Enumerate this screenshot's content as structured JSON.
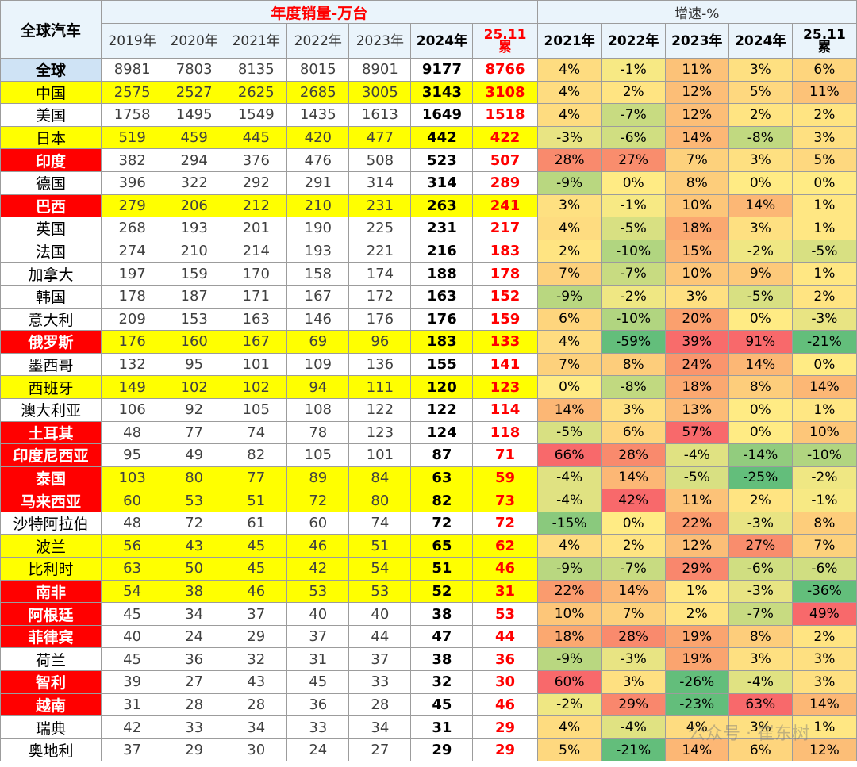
{
  "header": {
    "corner": "全球汽车",
    "sales_title": "年度销量-万台",
    "growth_title": "增速-%",
    "sales_years": [
      "2019年",
      "2020年",
      "2021年",
      "2022年",
      "2023年",
      "2024年",
      "25.11\n累"
    ],
    "growth_years": [
      "2021年",
      "2022年",
      "2023年",
      "2024年",
      "25.11\n累"
    ]
  },
  "watermark": "公众号 · 崔东树",
  "rows": [
    {
      "name": "全球",
      "hl": "blue",
      "sales": [
        "8981",
        "7803",
        "8135",
        "8015",
        "8901",
        "9177",
        "8766"
      ],
      "growth": [
        "4%",
        "-1%",
        "11%",
        "3%",
        "6%"
      ]
    },
    {
      "name": "中国",
      "hl": "yellow",
      "sales": [
        "2575",
        "2527",
        "2625",
        "2685",
        "3005",
        "3143",
        "3108"
      ],
      "growth": [
        "4%",
        "2%",
        "12%",
        "5%",
        "11%"
      ]
    },
    {
      "name": "美国",
      "hl": "",
      "sales": [
        "1758",
        "1495",
        "1549",
        "1435",
        "1613",
        "1649",
        "1518"
      ],
      "growth": [
        "4%",
        "-7%",
        "12%",
        "2%",
        "2%"
      ]
    },
    {
      "name": "日本",
      "hl": "yellow",
      "sales": [
        "519",
        "459",
        "445",
        "420",
        "477",
        "442",
        "422"
      ],
      "growth": [
        "-3%",
        "-6%",
        "14%",
        "-8%",
        "3%"
      ]
    },
    {
      "name": "印度",
      "hl": "red",
      "sales": [
        "382",
        "294",
        "376",
        "476",
        "508",
        "523",
        "507"
      ],
      "growth": [
        "28%",
        "27%",
        "7%",
        "3%",
        "5%"
      ]
    },
    {
      "name": "德国",
      "hl": "",
      "sales": [
        "396",
        "322",
        "292",
        "291",
        "314",
        "314",
        "289"
      ],
      "growth": [
        "-9%",
        "0%",
        "8%",
        "0%",
        "0%"
      ]
    },
    {
      "name": "巴西",
      "hl": "red",
      "rowyellow": true,
      "sales": [
        "279",
        "206",
        "212",
        "210",
        "231",
        "263",
        "241"
      ],
      "growth": [
        "3%",
        "-1%",
        "10%",
        "14%",
        "1%"
      ]
    },
    {
      "name": "英国",
      "hl": "",
      "sales": [
        "268",
        "193",
        "201",
        "190",
        "225",
        "231",
        "217"
      ],
      "growth": [
        "4%",
        "-5%",
        "18%",
        "3%",
        "1%"
      ]
    },
    {
      "name": "法国",
      "hl": "",
      "sales": [
        "274",
        "210",
        "214",
        "193",
        "221",
        "216",
        "183"
      ],
      "growth": [
        "2%",
        "-10%",
        "15%",
        "-2%",
        "-5%"
      ]
    },
    {
      "name": "加拿大",
      "hl": "",
      "sales": [
        "197",
        "159",
        "170",
        "158",
        "174",
        "188",
        "178"
      ],
      "growth": [
        "7%",
        "-7%",
        "10%",
        "9%",
        "1%"
      ]
    },
    {
      "name": "韩国",
      "hl": "",
      "sales": [
        "178",
        "187",
        "171",
        "167",
        "172",
        "163",
        "152"
      ],
      "growth": [
        "-9%",
        "-2%",
        "3%",
        "-5%",
        "2%"
      ]
    },
    {
      "name": "意大利",
      "hl": "",
      "sales": [
        "209",
        "153",
        "163",
        "146",
        "176",
        "176",
        "159"
      ],
      "growth": [
        "6%",
        "-10%",
        "20%",
        "0%",
        "-3%"
      ]
    },
    {
      "name": "俄罗斯",
      "hl": "red",
      "rowyellow": true,
      "sales": [
        "176",
        "160",
        "167",
        "69",
        "96",
        "183",
        "133"
      ],
      "growth": [
        "4%",
        "-59%",
        "39%",
        "91%",
        "-21%"
      ]
    },
    {
      "name": "墨西哥",
      "hl": "",
      "sales": [
        "132",
        "95",
        "101",
        "109",
        "136",
        "155",
        "141"
      ],
      "growth": [
        "7%",
        "8%",
        "24%",
        "14%",
        "0%"
      ]
    },
    {
      "name": "西班牙",
      "hl": "yellow",
      "sales": [
        "149",
        "102",
        "102",
        "94",
        "111",
        "120",
        "123"
      ],
      "growth": [
        "0%",
        "-8%",
        "18%",
        "8%",
        "14%"
      ]
    },
    {
      "name": "澳大利亚",
      "hl": "",
      "sales": [
        "106",
        "92",
        "105",
        "108",
        "122",
        "122",
        "114"
      ],
      "growth": [
        "14%",
        "3%",
        "13%",
        "0%",
        "1%"
      ]
    },
    {
      "name": "土耳其",
      "hl": "red",
      "sales": [
        "48",
        "77",
        "74",
        "78",
        "123",
        "124",
        "118"
      ],
      "growth": [
        "-5%",
        "6%",
        "57%",
        "0%",
        "10%"
      ]
    },
    {
      "name": "印度尼西亚",
      "hl": "red",
      "sales": [
        "95",
        "49",
        "82",
        "105",
        "101",
        "87",
        "71"
      ],
      "growth": [
        "66%",
        "28%",
        "-4%",
        "-14%",
        "-10%"
      ]
    },
    {
      "name": "泰国",
      "hl": "red",
      "rowyellow": true,
      "sales": [
        "103",
        "80",
        "77",
        "89",
        "84",
        "63",
        "59"
      ],
      "growth": [
        "-4%",
        "14%",
        "-5%",
        "-25%",
        "-2%"
      ]
    },
    {
      "name": "马来西亚",
      "hl": "red",
      "rowyellow": true,
      "sales": [
        "60",
        "53",
        "51",
        "72",
        "80",
        "82",
        "73"
      ],
      "growth": [
        "-4%",
        "42%",
        "11%",
        "2%",
        "-1%"
      ]
    },
    {
      "name": "沙特阿拉伯",
      "hl": "",
      "sales": [
        "48",
        "72",
        "61",
        "60",
        "74",
        "72",
        "72"
      ],
      "growth": [
        "-15%",
        "0%",
        "22%",
        "-3%",
        "8%"
      ]
    },
    {
      "name": "波兰",
      "hl": "yellow",
      "sales": [
        "56",
        "43",
        "45",
        "46",
        "51",
        "65",
        "62"
      ],
      "growth": [
        "4%",
        "2%",
        "12%",
        "27%",
        "7%"
      ]
    },
    {
      "name": "比利时",
      "hl": "yellow",
      "sales": [
        "63",
        "50",
        "45",
        "42",
        "54",
        "51",
        "46"
      ],
      "growth": [
        "-9%",
        "-7%",
        "29%",
        "-6%",
        "-6%"
      ]
    },
    {
      "name": "南非",
      "hl": "red",
      "rowyellow": true,
      "sales": [
        "54",
        "38",
        "46",
        "53",
        "53",
        "52",
        "31"
      ],
      "growth": [
        "22%",
        "14%",
        "1%",
        "-3%",
        "-36%"
      ]
    },
    {
      "name": "阿根廷",
      "hl": "red",
      "sales": [
        "45",
        "34",
        "37",
        "40",
        "40",
        "38",
        "53"
      ],
      "growth": [
        "10%",
        "7%",
        "2%",
        "-7%",
        "49%"
      ]
    },
    {
      "name": "菲律宾",
      "hl": "red",
      "sales": [
        "40",
        "24",
        "29",
        "37",
        "44",
        "47",
        "44"
      ],
      "growth": [
        "18%",
        "28%",
        "19%",
        "8%",
        "2%"
      ]
    },
    {
      "name": "荷兰",
      "hl": "",
      "sales": [
        "45",
        "36",
        "32",
        "31",
        "37",
        "38",
        "36"
      ],
      "growth": [
        "-9%",
        "-3%",
        "19%",
        "3%",
        "3%"
      ]
    },
    {
      "name": "智利",
      "hl": "red",
      "sales": [
        "39",
        "27",
        "43",
        "45",
        "33",
        "32",
        "30"
      ],
      "growth": [
        "60%",
        "3%",
        "-26%",
        "-4%",
        "3%"
      ]
    },
    {
      "name": "越南",
      "hl": "red",
      "sales": [
        "31",
        "28",
        "28",
        "36",
        "28",
        "45",
        "46"
      ],
      "growth": [
        "-2%",
        "29%",
        "-23%",
        "63%",
        "14%"
      ]
    },
    {
      "name": "瑞典",
      "hl": "",
      "sales": [
        "42",
        "33",
        "34",
        "33",
        "34",
        "31",
        "29"
      ],
      "growth": [
        "4%",
        "-4%",
        "4%",
        "3%",
        "1%"
      ]
    },
    {
      "name": "奥地利",
      "hl": "",
      "sales": [
        "37",
        "29",
        "30",
        "24",
        "27",
        "29",
        "29"
      ],
      "growth": [
        "5%",
        "-21%",
        "14%",
        "6%",
        "12%"
      ]
    }
  ]
}
